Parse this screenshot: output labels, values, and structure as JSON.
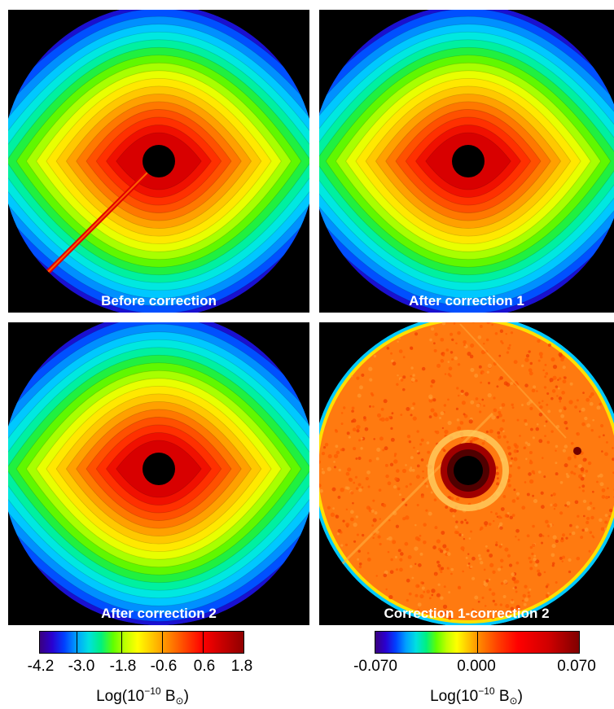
{
  "panels": [
    {
      "caption": "Before correction",
      "kind": "brightness",
      "streak": true
    },
    {
      "caption": "After correction 1",
      "kind": "brightness",
      "streak": false
    },
    {
      "caption": "After correction 2",
      "kind": "brightness",
      "streak": false
    },
    {
      "caption": "Correction 1-correction 2",
      "kind": "difference",
      "streak": false
    }
  ],
  "colorbars": [
    {
      "ticks": [
        "-4.2",
        "-3.0",
        "-1.8",
        "-0.6",
        "0.6",
        "1.8"
      ],
      "unit_base": "Log(10",
      "unit_exp": "−10",
      "unit_mid": " B",
      "unit_sub": "⊙",
      "unit_end": ")"
    },
    {
      "ticks": [
        "-0.070",
        "0.000",
        "0.070"
      ],
      "unit_base": "Log(10",
      "unit_exp": "−10",
      "unit_mid": " B",
      "unit_sub": "⊙",
      "unit_end": ")"
    }
  ],
  "colors": {
    "background": "#000000",
    "caption": "#ffffff"
  }
}
